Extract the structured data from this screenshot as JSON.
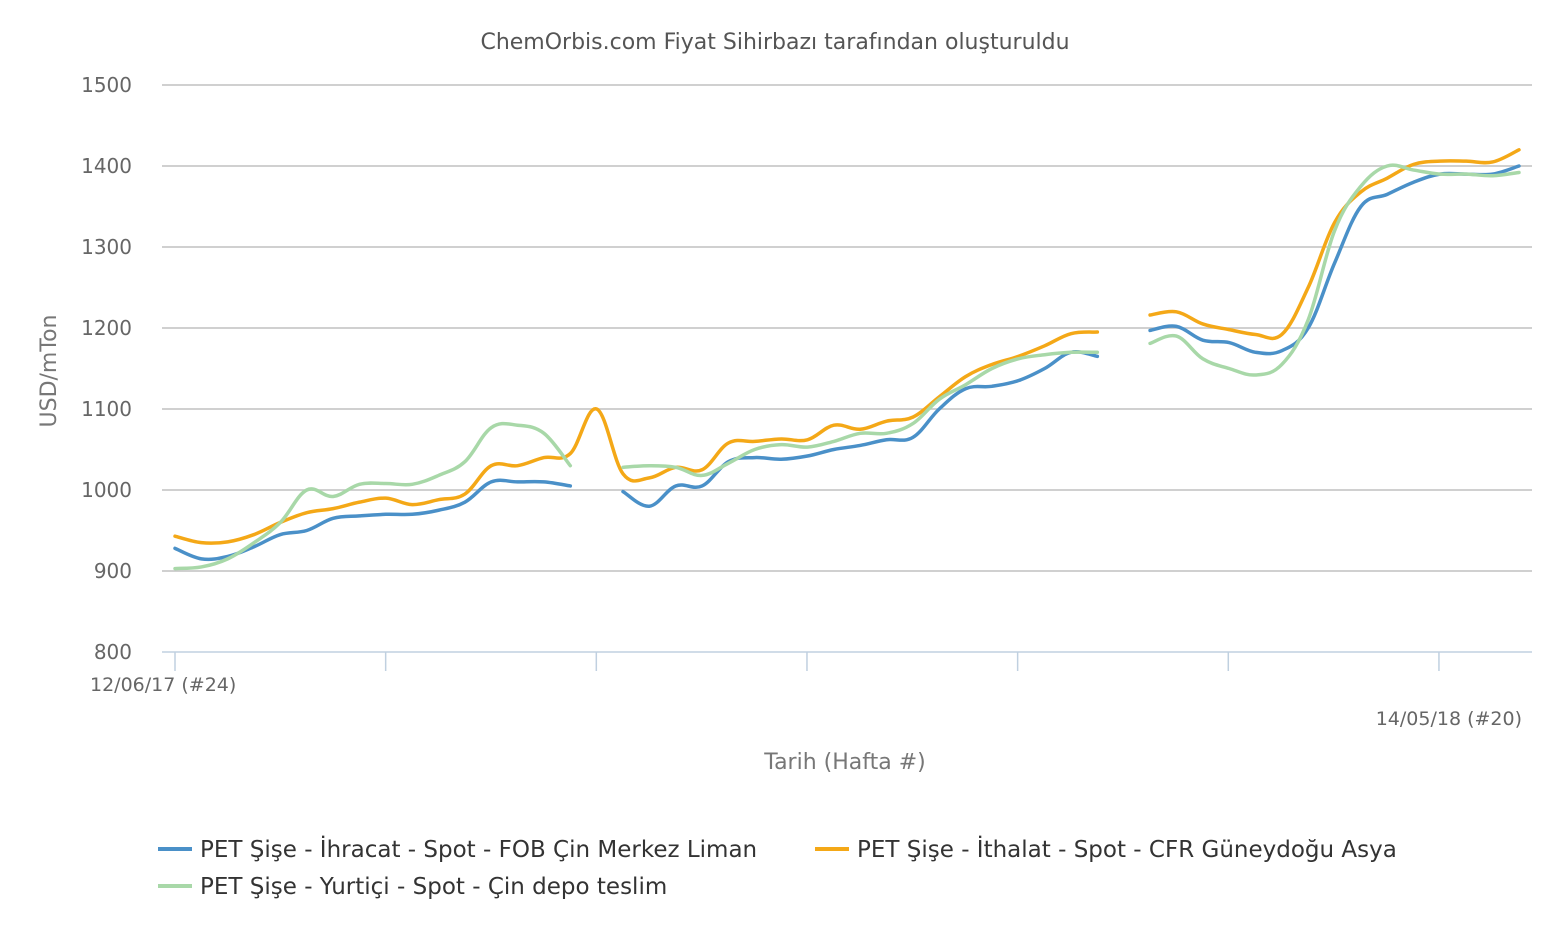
{
  "chart_data": {
    "type": "line",
    "subtitle": "ChemOrbis.com Fiyat Sihirbazı tarafından oluşturuldu",
    "xlabel": "Tarih (Hafta #)",
    "ylabel": "USD/mTon",
    "ylim": [
      800,
      1500
    ],
    "yticks": [
      "800",
      "900",
      "1000",
      "1100",
      "1200",
      "1300",
      "1400",
      "1500"
    ],
    "x_start_label": "12/06/17 (#24)",
    "x_end_label": "14/05/18 (#20)",
    "grid": true,
    "legend_position": "bottom",
    "x": [
      1,
      2,
      3,
      4,
      5,
      6,
      7,
      8,
      9,
      10,
      11,
      12,
      13,
      14,
      15,
      16,
      17,
      18,
      19,
      20,
      21,
      22,
      23,
      24,
      25,
      26,
      27,
      28,
      29,
      30,
      31,
      32,
      33,
      34,
      35,
      36,
      37,
      38,
      39,
      40,
      41,
      42,
      43,
      44,
      45,
      46,
      47,
      48,
      49,
      50,
      51,
      52
    ],
    "series": [
      {
        "name": "PET Şişe - İhracat - Spot - FOB Çin Merkez Liman",
        "color": "#4a90c8",
        "values": [
          928,
          915,
          918,
          930,
          945,
          950,
          965,
          968,
          970,
          970,
          975,
          985,
          1010,
          1010,
          1010,
          1005,
          null,
          998,
          980,
          1005,
          1005,
          1035,
          1040,
          1038,
          1042,
          1050,
          1055,
          1062,
          1065,
          1100,
          1125,
          1128,
          1135,
          1150,
          1170,
          1165,
          null,
          1197,
          1202,
          1185,
          1182,
          1170,
          1172,
          1200,
          1280,
          1350,
          1365,
          1380,
          1390,
          1390,
          1390,
          1400
        ]
      },
      {
        "name": "PET Şişe - İthalat - Spot - CFR Güneydoğu Asya",
        "color": "#f4a817",
        "values": [
          943,
          935,
          936,
          945,
          960,
          972,
          977,
          985,
          990,
          982,
          988,
          995,
          1030,
          1030,
          1040,
          1045,
          1100,
          1020,
          1015,
          1028,
          1025,
          1058,
          1060,
          1063,
          1062,
          1080,
          1075,
          1085,
          1090,
          1115,
          1140,
          1155,
          1165,
          1178,
          1193,
          1195,
          null,
          1216,
          1220,
          1205,
          1198,
          1192,
          1192,
          1250,
          1330,
          1368,
          1385,
          1402,
          1406,
          1406,
          1405,
          1420
        ]
      },
      {
        "name": "PET Şişe - Yurtiçi - Spot - Çin depo teslim",
        "color": "#a8d8a8",
        "values": [
          903,
          905,
          915,
          935,
          960,
          1000,
          992,
          1007,
          1008,
          1007,
          1018,
          1035,
          1077,
          1080,
          1070,
          1030,
          null,
          1028,
          1030,
          1028,
          1018,
          1033,
          1050,
          1056,
          1053,
          1060,
          1070,
          1070,
          1082,
          1112,
          1130,
          1150,
          1162,
          1167,
          1170,
          1170,
          null,
          1181,
          1190,
          1162,
          1150,
          1142,
          1155,
          1210,
          1320,
          1375,
          1400,
          1395,
          1390,
          1390,
          1388,
          1392
        ]
      }
    ]
  }
}
